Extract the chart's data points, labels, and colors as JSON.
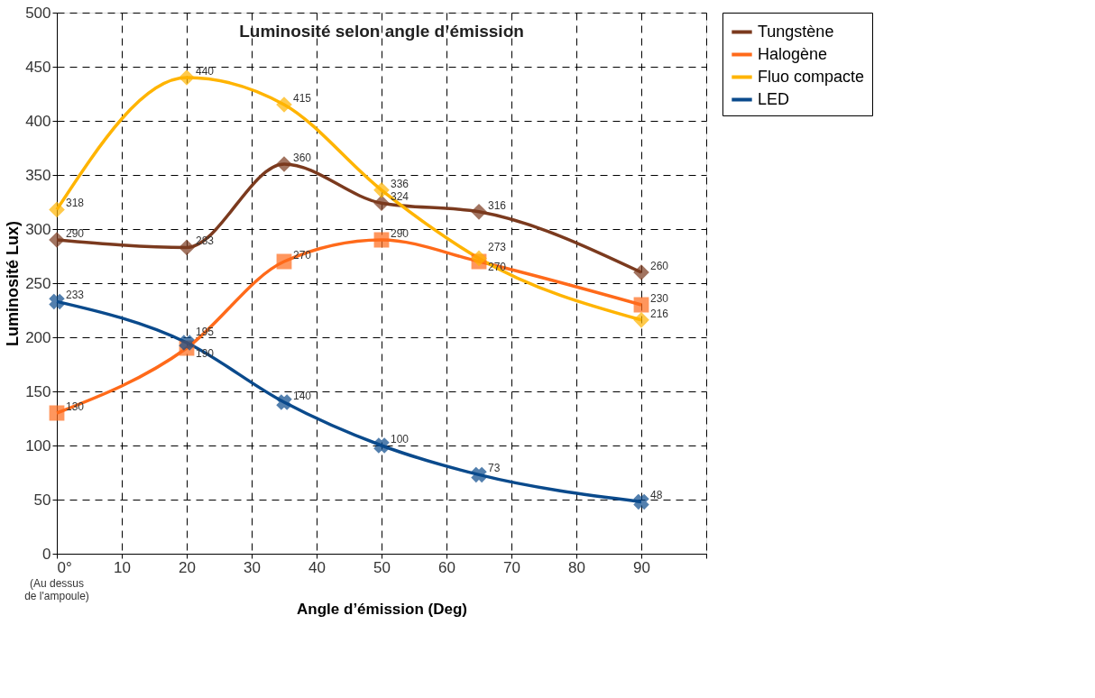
{
  "chart_data": {
    "type": "line",
    "title": "Luminosité selon angle d’émission",
    "xlabel": "Angle d’émission (Deg)",
    "ylabel": "Luminosité Lux)",
    "x": [
      0,
      20,
      35,
      50,
      65,
      90
    ],
    "series": [
      {
        "name": "Tungstène",
        "color": "#7b3a1e",
        "marker": "diamond",
        "values": [
          290,
          283,
          360,
          324,
          316,
          260
        ]
      },
      {
        "name": "Halogène",
        "color": "#ff6a1a",
        "marker": "square",
        "values": [
          130,
          190,
          270,
          290,
          270,
          230
        ]
      },
      {
        "name": "Fluo compacte",
        "color": "#ffb400",
        "marker": "diamond",
        "values": [
          318,
          440,
          415,
          336,
          273,
          216
        ]
      },
      {
        "name": "LED",
        "color": "#0a4a8c",
        "marker": "cross",
        "values": [
          233,
          195,
          140,
          100,
          73,
          48
        ]
      }
    ],
    "xlim": [
      0,
      100
    ],
    "xticks": [
      {
        "value": 0,
        "label": "0°"
      },
      10,
      20,
      30,
      40,
      50,
      60,
      70,
      80,
      90,
      {
        "value": 100,
        "label": null
      }
    ],
    "ylim": [
      0,
      500
    ],
    "yticks": [
      0,
      50,
      100,
      150,
      200,
      250,
      300,
      350,
      400,
      450,
      500
    ],
    "grid": true,
    "line_style": "solid",
    "legend": "right",
    "data_labels": true,
    "annotations": [
      "(Au dessus\nde l'ampoule)"
    ]
  }
}
